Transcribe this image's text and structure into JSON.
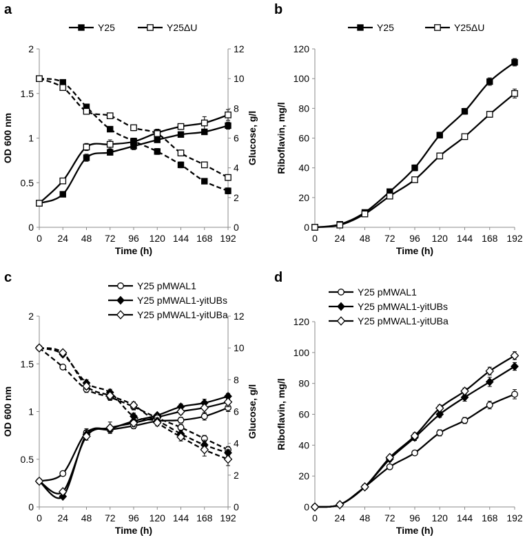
{
  "chart_data": [
    {
      "panel_label": "a",
      "type": "line",
      "xlabel": "Time (h)",
      "ylabel": "OD  600 nm",
      "y2label": "Glucose, g/l",
      "x": [
        0,
        24,
        48,
        72,
        96,
        120,
        144,
        168,
        192
      ],
      "xticks": [
        "0",
        "24",
        "48",
        "72",
        "96",
        "120",
        "144",
        "168",
        "192"
      ],
      "ylim": [
        0,
        2
      ],
      "yticks": [
        "0",
        "0.5",
        "1",
        "1.5",
        "2"
      ],
      "y2lim": [
        0,
        12
      ],
      "y2ticks": [
        "0",
        "2",
        "4",
        "6",
        "8",
        "10",
        "12"
      ],
      "legend": [
        {
          "label": "Y25",
          "marker": "filled-square"
        },
        {
          "label": "Y25ΔU",
          "marker": "open-square"
        }
      ],
      "series": [
        {
          "name": "Y25 OD",
          "axis": "left",
          "style": "solid",
          "marker": "filled-square",
          "values": [
            0.27,
            0.37,
            0.78,
            0.84,
            0.91,
            0.98,
            1.04,
            1.07,
            1.14
          ],
          "errors": [
            0.01,
            0.03,
            0.04,
            0.03,
            0.04,
            0.02,
            0.02,
            0.03,
            0.04
          ]
        },
        {
          "name": "Y25ΔU OD",
          "axis": "left",
          "style": "solid",
          "marker": "open-square",
          "values": [
            0.27,
            0.52,
            0.9,
            0.93,
            0.96,
            1.06,
            1.13,
            1.17,
            1.26
          ],
          "errors": [
            0.01,
            0.03,
            0.04,
            0.05,
            0.04,
            0.04,
            0.02,
            0.07,
            0.06
          ]
        },
        {
          "name": "Y25 glucose",
          "axis": "right",
          "style": "dashed",
          "marker": "filled-square",
          "values": [
            10.0,
            9.75,
            8.1,
            6.6,
            5.8,
            5.1,
            4.2,
            3.1,
            2.45
          ],
          "errors": [
            0.05,
            0.1,
            0.15,
            0.15,
            0.2,
            0.2,
            0.2,
            0.1,
            0.2
          ]
        },
        {
          "name": "Y25ΔU glucose",
          "axis": "right",
          "style": "dashed",
          "marker": "open-square",
          "values": [
            10.0,
            9.4,
            7.8,
            7.5,
            6.7,
            6.3,
            5.0,
            4.2,
            3.35
          ],
          "errors": [
            0.05,
            0.15,
            0.2,
            0.15,
            0.2,
            0.25,
            0.2,
            0.1,
            0.2
          ]
        }
      ]
    },
    {
      "panel_label": "b",
      "type": "line",
      "xlabel": "Time (h)",
      "ylabel": "Riboflavin, mg/l",
      "x": [
        0,
        24,
        48,
        72,
        96,
        120,
        144,
        168,
        192
      ],
      "xticks": [
        "0",
        "24",
        "48",
        "72",
        "96",
        "120",
        "144",
        "168",
        "192"
      ],
      "ylim": [
        0,
        120
      ],
      "yticks": [
        "0",
        "20",
        "40",
        "60",
        "80",
        "100",
        "120"
      ],
      "legend": [
        {
          "label": "Y25",
          "marker": "filled-square"
        },
        {
          "label": "Y25ΔU",
          "marker": "open-square"
        }
      ],
      "series": [
        {
          "name": "Y25",
          "axis": "left",
          "style": "solid",
          "marker": "filled-square",
          "values": [
            0,
            2,
            10,
            24,
            40,
            62,
            78,
            98,
            111
          ],
          "errors": [
            0,
            0.5,
            1,
            1.5,
            2,
            2,
            2,
            2.5,
            2.5
          ]
        },
        {
          "name": "Y25ΔU",
          "axis": "left",
          "style": "solid",
          "marker": "open-square",
          "values": [
            0,
            1.5,
            9,
            21,
            32,
            48,
            61,
            76,
            90
          ],
          "errors": [
            0,
            0.5,
            1,
            1,
            1,
            2,
            2,
            2,
            3
          ]
        }
      ]
    },
    {
      "panel_label": "c",
      "type": "line",
      "xlabel": "Time (h)",
      "ylabel": "OD 600 nm",
      "y2label": "Glucose, g/l",
      "x": [
        0,
        24,
        48,
        72,
        96,
        120,
        144,
        168,
        192
      ],
      "xticks": [
        "0",
        "24",
        "48",
        "72",
        "96",
        "120",
        "144",
        "168",
        "192"
      ],
      "ylim": [
        0,
        2
      ],
      "yticks": [
        "0",
        "0.5",
        "1",
        "1.5",
        "2"
      ],
      "y2lim": [
        0,
        12
      ],
      "y2ticks": [
        "0",
        "2",
        "4",
        "6",
        "8",
        "10",
        "12"
      ],
      "legend": [
        {
          "label": "Y25 pMWAL1",
          "marker": "open-circle"
        },
        {
          "label": "Y25 pMWAL1-yitUBs",
          "marker": "filled-diamond"
        },
        {
          "label": "Y25 pMWAL1-yitUBa",
          "marker": "open-diamond"
        }
      ],
      "series": [
        {
          "name": "Y25 pMWAL1 OD",
          "axis": "left",
          "style": "solid",
          "marker": "open-circle",
          "values": [
            0.27,
            0.35,
            0.78,
            0.81,
            0.85,
            0.9,
            0.91,
            0.95,
            1.04
          ],
          "errors": [
            0.01,
            0.02,
            0.04,
            0.03,
            0.03,
            0.02,
            0.03,
            0.04,
            0.04
          ]
        },
        {
          "name": "Y25 pMWAL1-yitUBs OD",
          "axis": "left",
          "style": "solid",
          "marker": "filled-diamond",
          "values": [
            0.27,
            0.11,
            0.76,
            0.82,
            0.9,
            0.96,
            1.05,
            1.09,
            1.16
          ],
          "errors": [
            0.01,
            0.02,
            0.04,
            0.03,
            0.03,
            0.02,
            0.03,
            0.04,
            0.03
          ]
        },
        {
          "name": "Y25 pMWAL1-yitUBa OD",
          "axis": "left",
          "style": "solid",
          "marker": "open-diamond",
          "values": [
            0.27,
            0.16,
            0.74,
            0.83,
            0.88,
            0.94,
            1.0,
            1.04,
            1.1
          ],
          "errors": [
            0.01,
            0.02,
            0.04,
            0.06,
            0.04,
            0.03,
            0.03,
            0.06,
            0.05
          ]
        },
        {
          "name": "Y25 pMWAL1 glucose",
          "axis": "right",
          "style": "dashed",
          "marker": "open-circle",
          "values": [
            10.0,
            8.8,
            7.4,
            6.9,
            6.3,
            5.6,
            5.0,
            4.3,
            3.6
          ],
          "errors": [
            0.05,
            0.1,
            0.2,
            0.2,
            0.2,
            0.15,
            0.2,
            0.2,
            0.2
          ]
        },
        {
          "name": "Y25 pMWAL1-yitUBs glucose",
          "axis": "right",
          "style": "dashed",
          "marker": "filled-diamond",
          "values": [
            10.0,
            9.6,
            7.8,
            7.2,
            5.7,
            5.4,
            4.6,
            3.9,
            3.4
          ],
          "errors": [
            0.05,
            0.15,
            0.2,
            0.2,
            0.2,
            0.2,
            0.2,
            0.3,
            0.2
          ]
        },
        {
          "name": "Y25 pMWAL1-yitUBa glucose",
          "axis": "right",
          "style": "dashed",
          "marker": "open-diamond",
          "values": [
            10.0,
            9.7,
            7.6,
            7.0,
            6.4,
            5.3,
            4.4,
            3.6,
            3.0
          ],
          "errors": [
            0.05,
            0.15,
            0.2,
            0.2,
            0.2,
            0.2,
            0.25,
            0.4,
            0.4
          ]
        }
      ]
    },
    {
      "panel_label": "d",
      "type": "line",
      "xlabel": "Time (h)",
      "ylabel": "Riboflavin, mg/l",
      "x": [
        0,
        24,
        48,
        72,
        96,
        120,
        144,
        168,
        192
      ],
      "xticks": [
        "0",
        "24",
        "48",
        "72",
        "96",
        "120",
        "144",
        "168",
        "192"
      ],
      "ylim": [
        0,
        120
      ],
      "yticks": [
        "0",
        "20",
        "40",
        "60",
        "80",
        "100",
        "120"
      ],
      "legend": [
        {
          "label": "Y25 pMWAL1",
          "marker": "open-circle"
        },
        {
          "label": "Y25 pMWAL1-yitUBs",
          "marker": "filled-diamond"
        },
        {
          "label": "Y25 pMWAL1-yitUBa",
          "marker": "open-diamond"
        }
      ],
      "series": [
        {
          "name": "Y25 pMWAL1",
          "axis": "left",
          "style": "solid",
          "marker": "open-circle",
          "values": [
            0,
            1.5,
            13,
            26,
            35,
            48,
            56,
            66,
            73
          ],
          "errors": [
            0,
            0.5,
            1,
            1,
            1.5,
            2,
            2,
            2.5,
            3
          ]
        },
        {
          "name": "Y25 pMWAL1-yitUBs",
          "axis": "left",
          "style": "solid",
          "marker": "filled-diamond",
          "values": [
            0,
            1.5,
            13,
            31,
            45,
            60,
            71,
            81,
            91
          ],
          "errors": [
            0,
            0.5,
            1,
            1.5,
            2,
            2,
            2.5,
            3,
            2.5
          ]
        },
        {
          "name": "Y25 pMWAL1-yitUBa",
          "axis": "left",
          "style": "solid",
          "marker": "open-diamond",
          "values": [
            0,
            1.5,
            13,
            32,
            46,
            64,
            75,
            88,
            98
          ],
          "errors": [
            0,
            0.5,
            1,
            1.5,
            2,
            2,
            2,
            2.5,
            2.5
          ]
        }
      ]
    }
  ]
}
